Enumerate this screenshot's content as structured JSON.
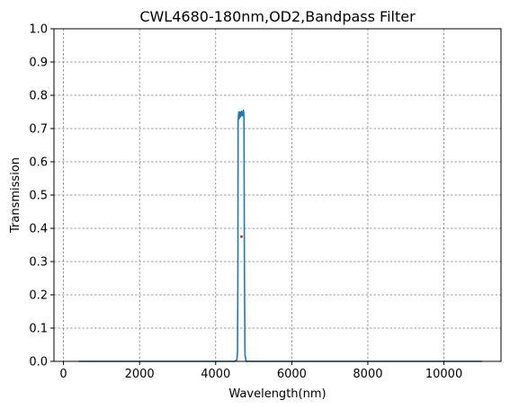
{
  "chart_data": {
    "type": "line",
    "title": "CWL4680-180nm,OD2,Bandpass Filter",
    "xlabel": "Wavelength(nm)",
    "ylabel": "Transmission",
    "xlim": [
      -250,
      11500
    ],
    "ylim": [
      0,
      1.0
    ],
    "xticks": [
      0,
      2000,
      4000,
      6000,
      8000,
      10000
    ],
    "xtick_labels": [
      "0",
      "2000",
      "4000",
      "6000",
      "8000",
      "10000"
    ],
    "yticks": [
      0.0,
      0.1,
      0.2,
      0.3,
      0.4,
      0.5,
      0.6,
      0.7,
      0.8,
      0.9,
      1.0
    ],
    "ytick_labels": [
      "0.0",
      "0.1",
      "0.2",
      "0.3",
      "0.4",
      "0.5",
      "0.6",
      "0.7",
      "0.8",
      "0.9",
      "1.0"
    ],
    "grid": true,
    "series": [
      {
        "color": "#1f77b4",
        "x": [
          400,
          4200,
          4500,
          4560,
          4575,
          4585,
          4590,
          4600,
          4610,
          4620,
          4630,
          4640,
          4650,
          4660,
          4670,
          4680,
          4690,
          4700,
          4710,
          4720,
          4730,
          4740,
          4745,
          4755,
          4770,
          4800,
          5200,
          11000
        ],
        "y": [
          0.0,
          0.0,
          0.0,
          0.005,
          0.03,
          0.3,
          0.72,
          0.74,
          0.75,
          0.73,
          0.745,
          0.75,
          0.735,
          0.748,
          0.74,
          0.752,
          0.738,
          0.745,
          0.75,
          0.74,
          0.755,
          0.745,
          0.72,
          0.3,
          0.02,
          0.0,
          0.0,
          0.0
        ]
      }
    ],
    "markers": [
      {
        "x": 4680,
        "y": 0.375,
        "color": "#d62728"
      }
    ]
  }
}
